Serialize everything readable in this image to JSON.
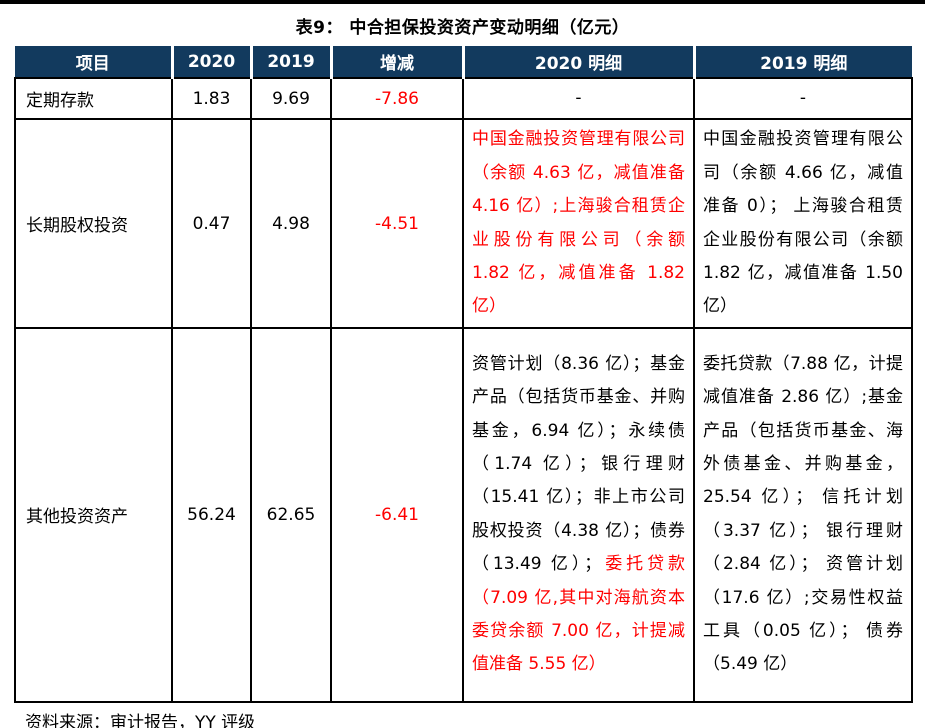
{
  "title": "表9： 中合担保投资资产变动明细（亿元）",
  "source_note": "资料来源：审计报告，YY 评级",
  "colors": {
    "header_bg": "#123A5E",
    "negative_red": "#FF0000",
    "border_black": "#000000"
  },
  "table": {
    "headers": [
      "项目",
      "2020",
      "2019",
      "增减",
      "2020 明细",
      "2019 明细"
    ],
    "rows": [
      {
        "item": "定期存款",
        "v2020": "1.83",
        "v2019": "9.69",
        "change": "-7.86",
        "detail2020": [
          {
            "text": "-",
            "color": "black"
          }
        ],
        "detail2019": [
          {
            "text": "-",
            "color": "black"
          }
        ]
      },
      {
        "item": "长期股权投资",
        "v2020": "0.47",
        "v2019": "4.98",
        "change": "-4.51",
        "detail2020": [
          {
            "text": "中国金融投资管理有限公司（余额 4.63 亿，减值准备 4.16 亿）;上海骏合租赁企业股份有限公司（余额 1.82 亿，减值准备 1.82 亿）",
            "color": "red"
          }
        ],
        "detail2019": [
          {
            "text": "中国金融投资管理有限公司（余额 4.66 亿，减值准备 0）； 上海骏合租赁企业股份有限公司（余额 1.82 亿，减值准备 1.50 亿）",
            "color": "black"
          }
        ]
      },
      {
        "item": "其他投资资产",
        "v2020": "56.24",
        "v2019": "62.65",
        "change": "-6.41",
        "detail2020": [
          {
            "text": "资管计划（8.36 亿）；基金产品（包括货币基金、并购基金，6.94 亿）；永续债（1.74 亿）；银行理财（15.41 亿）；非上市公司股权投资（4.38 亿）；债券（13.49 亿）；",
            "color": "black"
          },
          {
            "text": "委托贷款（7.09 亿,其中对海航资本委贷余额 7.00 亿，计提减值准备 5.55 亿）",
            "color": "red"
          }
        ],
        "detail2019": [
          {
            "text": "委托贷款（7.88 亿，计提减值准备 2.86 亿）;基金产品（包括货币基金、海外债基金、并购基金，25.54 亿）； 信托计划（3.37 亿）； 银行理财（2.84 亿）； 资管计划（17.6 亿）;交易性权益工具（0.05 亿）； 债券（5.49 亿）",
            "color": "black"
          }
        ]
      }
    ]
  }
}
